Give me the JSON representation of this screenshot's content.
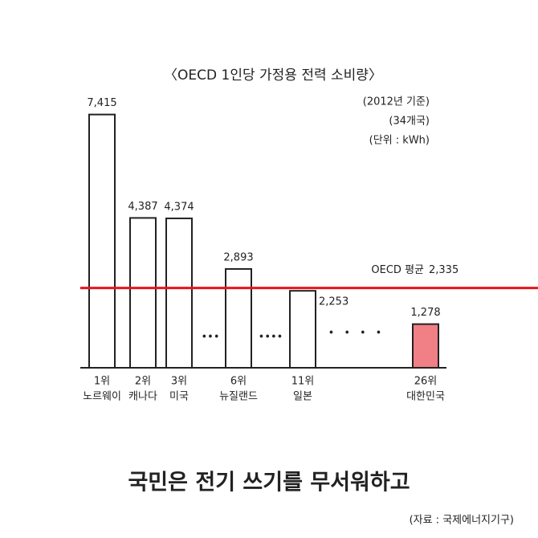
{
  "chart_data": {
    "type": "bar",
    "title": "〈OECD 1인당 가정용 전력 소비량〉",
    "notes": [
      "(2012년 기준)",
      "(34개국)",
      "(단위 : kWh)"
    ],
    "ranks": [
      "1위",
      "2위",
      "3위",
      "6위",
      "11위",
      "26위"
    ],
    "categories": [
      "노르웨이",
      "캐나다",
      "미국",
      "뉴질랜드",
      "일본",
      "대한민국"
    ],
    "values": [
      7415,
      4387,
      4374,
      2893,
      2253,
      1278
    ],
    "value_labels": [
      "7,415",
      "4,387",
      "4,374",
      "2,893",
      "2,253",
      "1,278"
    ],
    "colors": [
      "#ffffff",
      "#ffffff",
      "#ffffff",
      "#ffffff",
      "#ffffff",
      "#f07f86"
    ],
    "average": {
      "name": "OECD 평균",
      "value": 2335,
      "label": "2,335",
      "color": "#e8141b"
    },
    "ylim": [
      0,
      7500
    ],
    "footer": "국민은 전기 쓰기를 무서워하고",
    "source": "(자료 : 국제에너지기구)"
  }
}
